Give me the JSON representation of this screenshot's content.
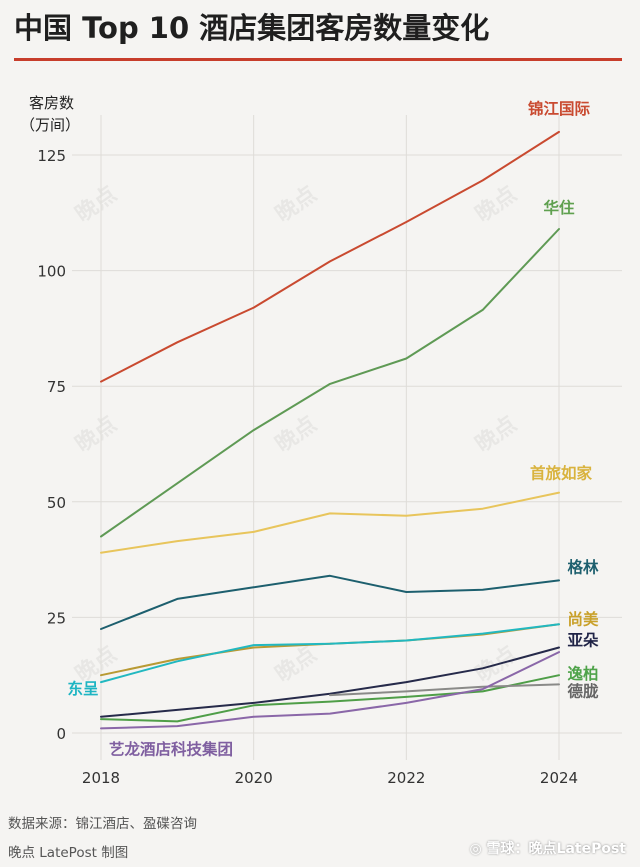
{
  "title": "中国 Top 10 酒店集团客房数量变化",
  "footer": {
    "source": "数据来源：锦江酒店、盈碟咨询",
    "credit": "晚点 LatePost 制图",
    "watermark": "◎ 雪球：晚点LatePost"
  },
  "watermark_text": "晚点",
  "colors": {
    "accent": "#c73d2b",
    "grid": "#dedcd8",
    "axis_text": "#333333"
  },
  "chart_data": {
    "type": "line",
    "title": "中国 Top 10 酒店集团客房数量变化",
    "ylabel": [
      "客房数",
      "（万间）"
    ],
    "xlabel": "",
    "x": [
      2018,
      2019,
      2020,
      2021,
      2022,
      2023,
      2024
    ],
    "xticks": [
      "2018",
      "2020",
      "2022",
      "2024"
    ],
    "yticks": [
      "0",
      "25",
      "50",
      "75",
      "100",
      "125"
    ],
    "ylim": [
      -1,
      133
    ],
    "xlim": [
      2017.8,
      2024.6
    ],
    "grid": true,
    "series": [
      {
        "name": "锦江国际",
        "color": "#c94a30",
        "label_color": "#c94a30",
        "label_dx": 0,
        "label_dy": -18,
        "label_anchor": "middle",
        "values": [
          76,
          84.5,
          92,
          102,
          110.5,
          119.5,
          130
        ]
      },
      {
        "name": "华住",
        "color": "#5f9a55",
        "label_color": "#5fa04f",
        "label_dx": 0,
        "label_dy": -16,
        "label_anchor": "middle",
        "values": [
          42.5,
          54,
          65.5,
          75.5,
          81,
          91.5,
          109
        ]
      },
      {
        "name": "首旅如家",
        "color": "#e8c55c",
        "label_color": "#d9b33e",
        "label_dx": 2,
        "label_dy": -14,
        "label_anchor": "middle",
        "values": [
          39,
          41.5,
          43.5,
          47.5,
          47,
          48.5,
          52
        ]
      },
      {
        "name": "格林",
        "color": "#1d5f6e",
        "label_color": "#1d5f6e",
        "label_dx": 24,
        "label_dy": -8,
        "label_anchor": "middle",
        "values": [
          22.5,
          29,
          31.5,
          34,
          30.5,
          31,
          33
        ]
      },
      {
        "name": "尚美",
        "color": "#b89a34",
        "label_color": "#c9a12a",
        "label_dx": 24,
        "label_dy": 0,
        "label_anchor": "middle",
        "values": [
          12.5,
          16,
          18.5,
          19.3,
          20,
          21.3,
          23.5
        ]
      },
      {
        "name": "东呈",
        "color": "#22b8c0",
        "label_color": "#1fb5c3",
        "label_dx": -18,
        "label_dy": 12,
        "label_anchor": "middle",
        "values": [
          11,
          15.5,
          19,
          19.3,
          20,
          21.5,
          23.5
        ]
      },
      {
        "name": "亚朵",
        "color": "#262a4a",
        "label_color": "#1f2346",
        "label_dx": 24,
        "label_dy": -2,
        "label_anchor": "middle",
        "values": [
          3.5,
          5,
          6.5,
          8.5,
          11,
          14,
          18.5
        ]
      },
      {
        "name": "逸柏",
        "color": "#4f9e48",
        "label_color": "#4fa34a",
        "label_dx": 24,
        "label_dy": 4,
        "label_anchor": "middle",
        "values": [
          3,
          2.5,
          6,
          6.8,
          7.8,
          9,
          12.5
        ]
      },
      {
        "name": "德胧",
        "color": "#8a8a88",
        "label_color": "#666666",
        "label_dx": 24,
        "label_dy": 12,
        "label_anchor": "middle",
        "start_index": 3,
        "values": [
          null,
          null,
          null,
          8.2,
          9,
          10,
          10.5
        ]
      },
      {
        "name": "艺龙酒店科技集团",
        "color": "#8a67a8",
        "label_color": "#7f5fa0",
        "label_dx": 70,
        "label_dy": 26,
        "label_anchor": "middle",
        "values": [
          1,
          1.5,
          3.5,
          4.2,
          6.5,
          9.5,
          17.5
        ]
      }
    ]
  }
}
